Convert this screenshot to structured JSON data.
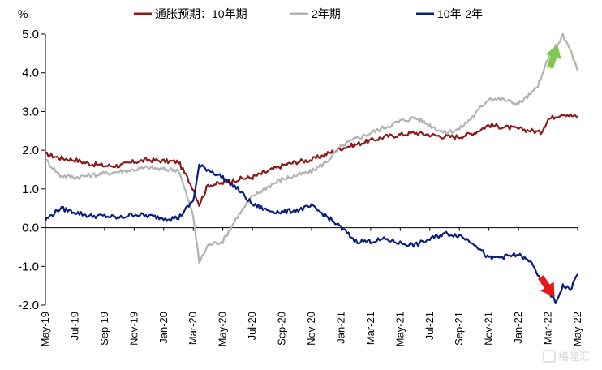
{
  "chart_data": {
    "type": "line",
    "unit_label": "%",
    "ylim": [
      -2.0,
      5.0
    ],
    "y_ticks": [
      "5.0",
      "4.0",
      "3.0",
      "2.0",
      "1.0",
      "0.0",
      "-1.0",
      "-2.0"
    ],
    "y_tick_values": [
      5,
      4,
      3,
      2,
      1,
      0,
      -1,
      -2
    ],
    "x_ticks": [
      "May-19",
      "Jul-19",
      "Sep-19",
      "Nov-19",
      "Jan-20",
      "Mar-20",
      "May-20",
      "Jul-20",
      "Sep-20",
      "Nov-20",
      "Jan-21",
      "Mar-21",
      "May-21",
      "Jul-21",
      "Sep-21",
      "Nov-21",
      "Jan-22",
      "Mar-22",
      "May-22"
    ],
    "x_tick_months": [
      0,
      2,
      4,
      6,
      8,
      10,
      12,
      14,
      16,
      18,
      20,
      22,
      24,
      26,
      28,
      30,
      32,
      34,
      36
    ],
    "grid": false,
    "legend_position": "top",
    "series": [
      {
        "name": "通胀预期：10年期",
        "color": "#8b1a1a",
        "points": [
          [
            0,
            1.9
          ],
          [
            1,
            1.8
          ],
          [
            2,
            1.75
          ],
          [
            3,
            1.65
          ],
          [
            4,
            1.6
          ],
          [
            5,
            1.6
          ],
          [
            6,
            1.7
          ],
          [
            7,
            1.75
          ],
          [
            8,
            1.72
          ],
          [
            9,
            1.7
          ],
          [
            10,
            1.0
          ],
          [
            10.4,
            0.6
          ],
          [
            11,
            1.1
          ],
          [
            12,
            1.15
          ],
          [
            13,
            1.25
          ],
          [
            14,
            1.3
          ],
          [
            15,
            1.45
          ],
          [
            16,
            1.6
          ],
          [
            17,
            1.7
          ],
          [
            18,
            1.75
          ],
          [
            19,
            1.9
          ],
          [
            20,
            2.05
          ],
          [
            21,
            2.15
          ],
          [
            22,
            2.25
          ],
          [
            23,
            2.35
          ],
          [
            24,
            2.4
          ],
          [
            25,
            2.45
          ],
          [
            26,
            2.4
          ],
          [
            27,
            2.35
          ],
          [
            28,
            2.35
          ],
          [
            29,
            2.45
          ],
          [
            30,
            2.65
          ],
          [
            31,
            2.6
          ],
          [
            32,
            2.55
          ],
          [
            33,
            2.5
          ],
          [
            33.5,
            2.45
          ],
          [
            34,
            2.8
          ],
          [
            35,
            2.95
          ],
          [
            36,
            2.85
          ]
        ]
      },
      {
        "name": "2年期",
        "color": "#b3b3b3",
        "points": [
          [
            0,
            1.75
          ],
          [
            1,
            1.35
          ],
          [
            2,
            1.3
          ],
          [
            3,
            1.35
          ],
          [
            4,
            1.4
          ],
          [
            5,
            1.45
          ],
          [
            6,
            1.5
          ],
          [
            7,
            1.55
          ],
          [
            8,
            1.5
          ],
          [
            9,
            1.5
          ],
          [
            10,
            0.3
          ],
          [
            10.4,
            -0.9
          ],
          [
            11,
            -0.45
          ],
          [
            12,
            -0.35
          ],
          [
            13,
            0.3
          ],
          [
            14,
            0.8
          ],
          [
            15,
            1.05
          ],
          [
            16,
            1.25
          ],
          [
            17,
            1.35
          ],
          [
            18,
            1.45
          ],
          [
            19,
            1.7
          ],
          [
            20,
            2.1
          ],
          [
            21,
            2.3
          ],
          [
            22,
            2.45
          ],
          [
            23,
            2.6
          ],
          [
            24,
            2.75
          ],
          [
            25,
            2.85
          ],
          [
            26,
            2.65
          ],
          [
            27,
            2.45
          ],
          [
            28,
            2.55
          ],
          [
            29,
            2.9
          ],
          [
            30,
            3.35
          ],
          [
            31,
            3.3
          ],
          [
            32,
            3.2
          ],
          [
            33,
            3.5
          ],
          [
            33.5,
            3.8
          ],
          [
            34,
            4.4
          ],
          [
            35,
            4.95
          ],
          [
            35.5,
            4.6
          ],
          [
            36,
            4.05
          ]
        ]
      },
      {
        "name": "10年-2年",
        "color": "#0a1f7a",
        "points": [
          [
            0,
            0.2
          ],
          [
            1,
            0.5
          ],
          [
            2,
            0.4
          ],
          [
            3,
            0.3
          ],
          [
            4,
            0.3
          ],
          [
            5,
            0.25
          ],
          [
            6,
            0.35
          ],
          [
            7,
            0.3
          ],
          [
            8,
            0.25
          ],
          [
            9,
            0.25
          ],
          [
            10,
            0.7
          ],
          [
            10.4,
            1.6
          ],
          [
            11,
            1.5
          ],
          [
            12,
            1.3
          ],
          [
            13,
            1.0
          ],
          [
            14,
            0.6
          ],
          [
            15,
            0.45
          ],
          [
            16,
            0.4
          ],
          [
            17,
            0.45
          ],
          [
            18,
            0.55
          ],
          [
            19,
            0.3
          ],
          [
            20,
            0.0
          ],
          [
            21,
            -0.35
          ],
          [
            22,
            -0.35
          ],
          [
            23,
            -0.3
          ],
          [
            24,
            -0.4
          ],
          [
            25,
            -0.45
          ],
          [
            26,
            -0.3
          ],
          [
            27,
            -0.15
          ],
          [
            28,
            -0.2
          ],
          [
            29,
            -0.4
          ],
          [
            30,
            -0.8
          ],
          [
            31,
            -0.75
          ],
          [
            32,
            -0.7
          ],
          [
            33,
            -0.95
          ],
          [
            33.5,
            -1.4
          ],
          [
            34,
            -1.6
          ],
          [
            34.5,
            -1.95
          ],
          [
            35,
            -1.5
          ],
          [
            35.5,
            -1.6
          ],
          [
            36,
            -1.2
          ]
        ]
      }
    ],
    "annotations": [
      {
        "name": "up-arrow",
        "color": "#7ec850",
        "at": [
          34.4,
          4.45
        ],
        "direction": "up"
      },
      {
        "name": "down-arrow",
        "color": "#e11b1b",
        "at": [
          34.0,
          -1.55
        ],
        "direction": "down"
      }
    ],
    "watermark_text": "格隆汇"
  }
}
